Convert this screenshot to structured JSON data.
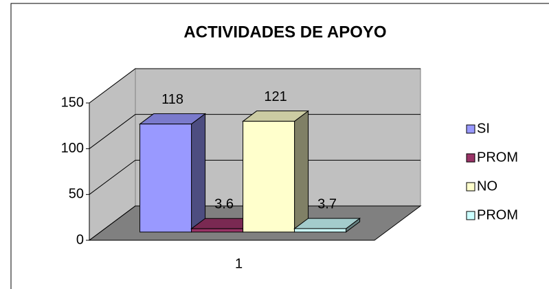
{
  "chart_data": {
    "type": "bar3d",
    "title": "ACTIVIDADES DE APOYO",
    "categories": [
      "1"
    ],
    "series": [
      {
        "name": "SI",
        "color": "#9999ff",
        "values": [
          118
        ]
      },
      {
        "name": "PROM",
        "color": "#993366",
        "values": [
          3.6
        ]
      },
      {
        "name": "NO",
        "color": "#ffffcc",
        "values": [
          121
        ]
      },
      {
        "name": "PROM",
        "color": "#ccffff",
        "values": [
          3.7
        ]
      }
    ],
    "ylim": [
      0,
      150
    ],
    "yticks": [
      0,
      50,
      100,
      150
    ],
    "grid": true,
    "legend": "right"
  }
}
